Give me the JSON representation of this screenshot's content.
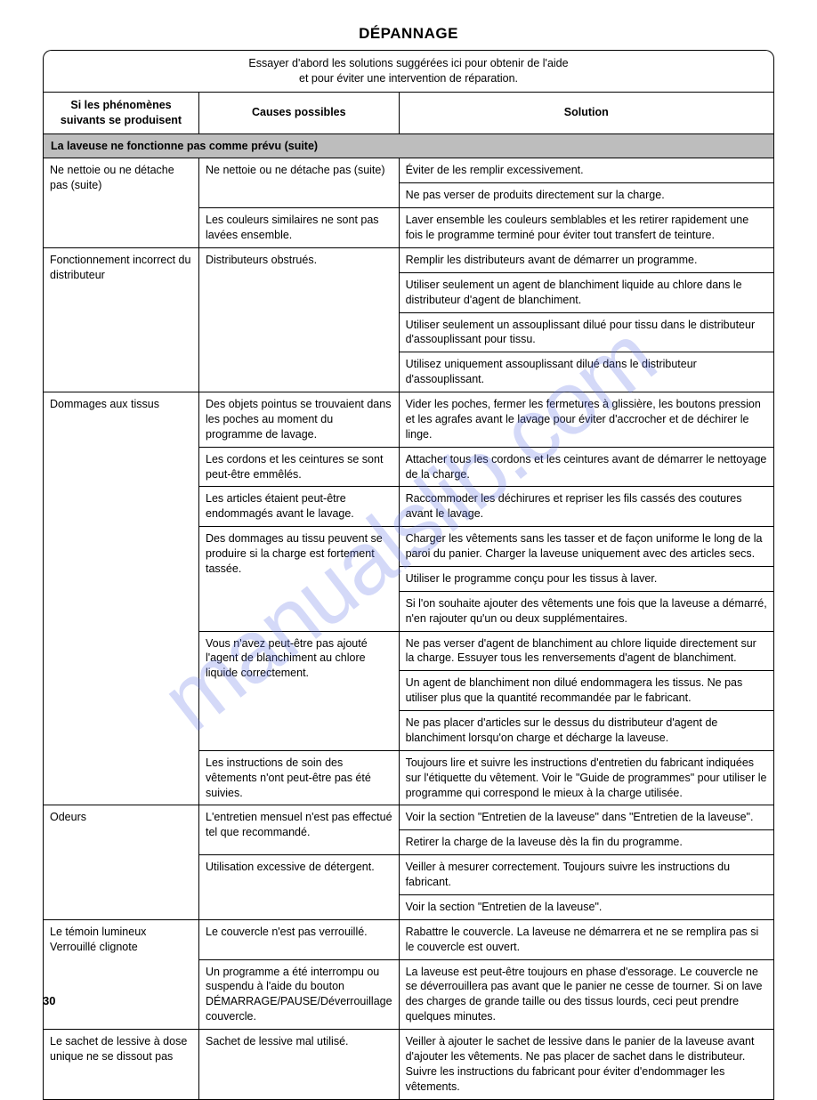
{
  "title": "DÉPANNAGE",
  "intro_line1": "Essayer d'abord les solutions suggérées ici pour obtenir de l'aide",
  "intro_line2": "et pour éviter une intervention de réparation.",
  "headers": {
    "col1_line1": "Si les phénomènes",
    "col1_line2": "suivants se produisent",
    "col2": "Causes possibles",
    "col3": "Solution"
  },
  "section_title": "La laveuse ne fonctionne pas comme prévu (suite)",
  "rows": {
    "r1c1": "Ne nettoie ou ne détache pas (suite)",
    "r1c2": "Ne nettoie ou ne détache pas (suite)",
    "r1c3": "Éviter de les remplir excessivement.",
    "r2c3": "Ne pas verser de produits directement sur la charge.",
    "r3c2": "Les couleurs similaires ne sont pas lavées ensemble.",
    "r3c3": "Laver ensemble les couleurs semblables et les retirer rapidement une fois le programme terminé pour éviter tout transfert de teinture.",
    "r4c1": "Fonctionnement incorrect du distributeur",
    "r4c2": "Distributeurs obstrués.",
    "r4c3": "Remplir les distributeurs avant de démarrer un programme.",
    "r5c3": "Utiliser seulement un agent de blanchiment liquide au chlore dans le distributeur d'agent de blanchiment.",
    "r6c3": "Utiliser seulement un assouplissant dilué pour tissu dans le distributeur d'assouplissant pour tissu.",
    "r7c3": "Utilisez uniquement assouplissant dilué dans le distributeur d'assouplissant.",
    "r8c1": "Dommages aux tissus",
    "r8c2": "Des objets pointus se trouvaient dans les poches au moment du programme de lavage.",
    "r8c3": "Vider les poches, fermer les fermetures à glissière, les boutons pression et les agrafes avant le lavage pour éviter d'accrocher et de déchirer le linge.",
    "r9c2": "Les cordons et les ceintures se sont peut-être emmêlés.",
    "r9c3": "Attacher tous les cordons et les ceintures avant de démarrer le nettoyage de la charge.",
    "r10c2": "Les articles étaient peut-être endommagés avant le lavage.",
    "r10c3": "Raccommoder les déchirures et repriser les fils cassés des coutures avant le lavage.",
    "r11c2": "Des dommages au tissu peuvent se produire si la charge est fortement tassée.",
    "r11c3": "Charger les vêtements sans les tasser et de façon uniforme le long de la paroi du panier. Charger la laveuse uniquement avec des articles secs.",
    "r12c3": "Utiliser le programme conçu pour les tissus à laver.",
    "r13c3": "Si l'on souhaite ajouter des vêtements une fois que la laveuse a démarré, n'en rajouter qu'un ou deux supplémentaires.",
    "r14c2": "Vous n'avez peut-être pas ajouté l'agent de blanchiment au chlore liquide correctement.",
    "r14c3": "Ne pas verser d'agent de blanchiment au chlore liquide directement sur la charge. Essuyer tous les renversements d'agent de blanchiment.",
    "r15c3": "Un agent de blanchiment non dilué endommagera les tissus. Ne pas utiliser plus que la quantité recommandée par le fabricant.",
    "r16c3": "Ne pas placer d'articles sur le dessus du distributeur d'agent de blanchiment lorsqu'on charge et décharge la laveuse.",
    "r17c2": "Les instructions de soin des vêtements n'ont peut-être pas été suivies.",
    "r17c3": "Toujours lire et suivre les instructions d'entretien du fabricant indiquées sur l'étiquette du vêtement. Voir le \"Guide de programmes\" pour utiliser le programme qui correspond le mieux à la charge utilisée.",
    "r18c1": "Odeurs",
    "r18c2": "L'entretien mensuel n'est pas effectué tel que recommandé.",
    "r18c3": "Voir la section \"Entretien de la laveuse\" dans \"Entretien de la laveuse\".",
    "r19c3": "Retirer la charge de la laveuse dès la fin du programme.",
    "r20c2": "Utilisation excessive de détergent.",
    "r20c3": "Veiller à mesurer correctement. Toujours suivre les instructions du fabricant.",
    "r21c3": "Voir la section \"Entretien de la laveuse\".",
    "r22c1": "Le témoin lumineux Verrouillé clignote",
    "r22c2": "Le couvercle n'est pas verrouillé.",
    "r22c3": "Rabattre le couvercle. La laveuse ne démarrera et ne se remplira pas si le couvercle est ouvert.",
    "r23c2": "Un programme a été interrompu ou suspendu à l'aide du bouton DÉMARRAGE/PAUSE/Déverrouillage couvercle.",
    "r23c3": "La laveuse est peut-être toujours en phase d'essorage. Le couvercle ne se déverrouillera pas avant que le panier ne cesse de tourner. Si on lave des charges de grande taille ou des tissus lourds, ceci peut prendre quelques minutes.",
    "r24c1": "Le sachet de lessive à dose unique ne se dissout pas",
    "r24c2": "Sachet de lessive mal utilisé.",
    "r24c3": "Veiller à ajouter le sachet de lessive dans le panier de la laveuse avant d'ajouter les vêtements. Ne pas placer de sachet dans le distributeur. Suivre les instructions du fabricant pour éviter d'endommager les vêtements."
  },
  "page_number": "30",
  "watermark": "manualslib.com"
}
